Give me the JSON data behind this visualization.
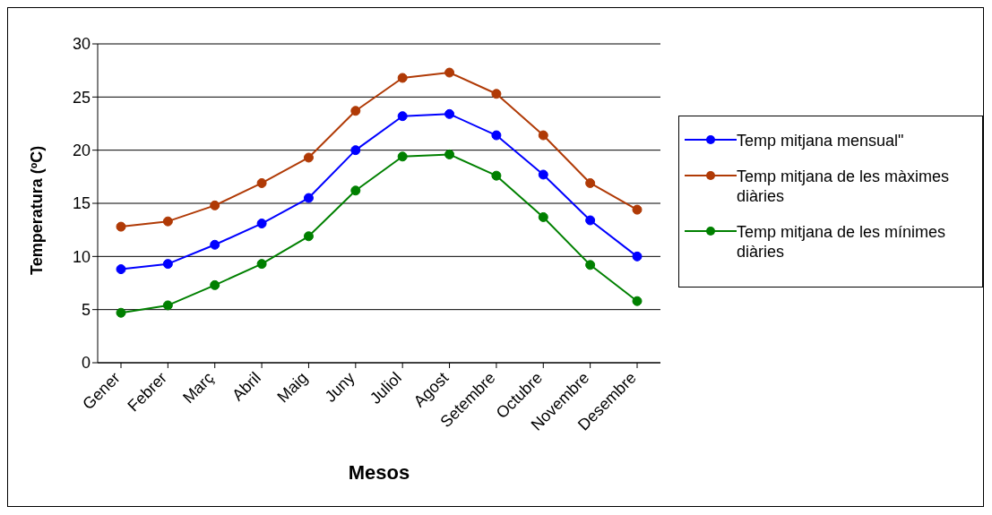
{
  "chart_data": {
    "type": "line",
    "xlabel": "Mesos",
    "ylabel": "Temperatura (ºC)",
    "categories": [
      "Gener",
      "Febrer",
      "Març",
      "Abril",
      "Maig",
      "Juny",
      "Juliol",
      "Agost",
      "Setembre",
      "Octubre",
      "Novembre",
      "Desembre"
    ],
    "series": [
      {
        "name": "Temp mitjana mensual\"",
        "color": "#0000ff",
        "values": [
          8.8,
          9.3,
          11.1,
          13.1,
          15.5,
          20.0,
          23.2,
          23.4,
          21.4,
          17.7,
          13.4,
          10.0
        ]
      },
      {
        "name": "Temp mitjana de les màximes diàries",
        "color": "#b03a06",
        "values": [
          12.8,
          13.3,
          14.8,
          16.9,
          19.3,
          23.7,
          26.8,
          27.3,
          25.3,
          21.4,
          16.9,
          14.4
        ]
      },
      {
        "name": "Temp mitjana de les mínimes diàries",
        "color": "#008000",
        "values": [
          4.7,
          5.4,
          7.3,
          9.3,
          11.9,
          16.2,
          19.4,
          19.6,
          17.6,
          13.7,
          9.2,
          5.8
        ]
      }
    ],
    "ylim": [
      0,
      30
    ],
    "yticks": [
      0,
      5,
      10,
      15,
      20,
      25,
      30
    ],
    "grid": "y",
    "legend": "right",
    "marker": "circle",
    "line_style": "solid"
  }
}
